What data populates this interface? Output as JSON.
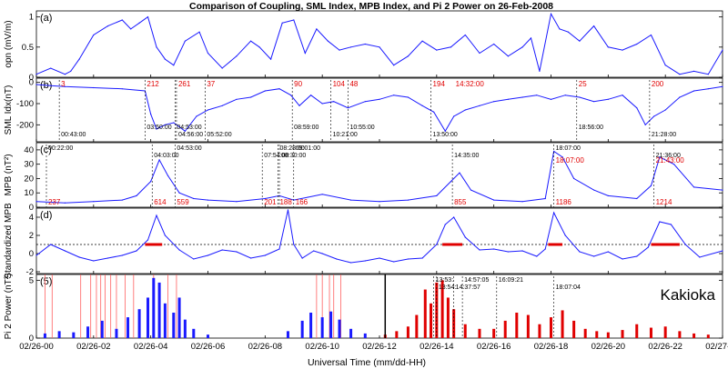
{
  "title": "Comparison of Coupling, SML Index, MPB Index, and Pi 2 Power on 26-Feb-2008",
  "xlabel": "Universal Time (mm/dd-HH)",
  "x_ticks": [
    "02/26-00",
    "02/26-02",
    "02/26-04",
    "02/26-06",
    "02/26-08",
    "02/26-10",
    "02/26-12",
    "02/26-14",
    "02/26-16",
    "02/26-18",
    "02/26-20",
    "02/26-22",
    "02/27-00"
  ],
  "colors": {
    "line": "#1a1aff",
    "red": "#e00000",
    "black": "#000000"
  },
  "chart_data": [
    {
      "type": "line",
      "panel": "(a)",
      "ylabel": "opn (mV/m)",
      "yticks": [
        "0",
        "0.5",
        "1"
      ],
      "ylim": [
        0,
        1.1
      ],
      "x": [
        0,
        0.5,
        1.0,
        1.2,
        1.5,
        2.0,
        2.5,
        3.0,
        3.3,
        3.6,
        3.9,
        4.2,
        4.5,
        4.8,
        5.2,
        5.7,
        6.0,
        6.5,
        7.0,
        7.5,
        7.8,
        8.2,
        8.6,
        9.0,
        9.4,
        9.8,
        10.2,
        10.6,
        11.0,
        11.5,
        12.0,
        12.5,
        13.0,
        13.5,
        14.0,
        14.5,
        15.0,
        15.5,
        16.0,
        16.5,
        17.0,
        17.3,
        17.6,
        18.0,
        18.3,
        18.6,
        19.0,
        19.5,
        20.0,
        20.5,
        21.0,
        21.5,
        22.0,
        22.5,
        23.0,
        23.5,
        24.0
      ],
      "y": [
        0.05,
        0.15,
        0.05,
        0.1,
        0.3,
        0.7,
        0.85,
        0.95,
        0.8,
        0.9,
        1.0,
        0.5,
        0.3,
        0.2,
        0.6,
        0.75,
        0.4,
        0.15,
        0.35,
        0.6,
        0.5,
        0.3,
        0.9,
        0.95,
        0.4,
        0.8,
        0.6,
        0.45,
        0.5,
        0.55,
        0.5,
        0.2,
        0.35,
        0.6,
        0.45,
        0.5,
        0.7,
        0.4,
        0.55,
        0.35,
        0.5,
        0.65,
        0.1,
        1.05,
        0.8,
        0.75,
        0.6,
        0.85,
        0.5,
        0.45,
        0.55,
        0.7,
        0.2,
        0.05,
        0.1,
        0.05,
        0.45
      ]
    },
    {
      "type": "line",
      "panel": "(b)",
      "ylabel": "SML Idx(nT)",
      "yticks": [
        "0",
        "-100",
        "-200"
      ],
      "ylim": [
        -280,
        20
      ],
      "x": [
        0,
        0.5,
        1.0,
        2.0,
        3.0,
        3.8,
        4.0,
        4.2,
        4.5,
        4.8,
        5.2,
        5.6,
        6.0,
        6.5,
        7.0,
        7.5,
        8.0,
        8.5,
        8.9,
        9.2,
        9.6,
        10.0,
        10.4,
        10.9,
        11.5,
        12.0,
        12.5,
        13.0,
        13.5,
        13.9,
        14.3,
        14.6,
        15.0,
        15.5,
        16.0,
        16.5,
        17.0,
        17.5,
        18.0,
        18.5,
        19.0,
        19.5,
        20.0,
        20.5,
        21.0,
        21.3,
        21.6,
        22.0,
        22.5,
        23.0,
        23.5,
        24.0
      ],
      "y": [
        -10,
        -15,
        -20,
        -25,
        -30,
        -40,
        -150,
        -220,
        -200,
        -190,
        -230,
        -160,
        -130,
        -110,
        -80,
        -70,
        -40,
        -30,
        -60,
        -110,
        -60,
        -100,
        -90,
        -120,
        -90,
        -80,
        -60,
        -70,
        -110,
        -140,
        -230,
        -160,
        -130,
        -110,
        -90,
        -80,
        -70,
        -60,
        -80,
        -60,
        -70,
        -90,
        -80,
        -60,
        -120,
        -200,
        -160,
        -130,
        -70,
        -40,
        -30,
        -20
      ],
      "red_labels": [
        "3",
        "212",
        "261",
        "37",
        "90",
        "104",
        "48",
        "194",
        "14:32:00",
        "25",
        "200"
      ],
      "top_labels": [
        "00:43:00",
        "03:50:00",
        "04:56:00",
        "04:53:00",
        "05:52:00",
        "08:59:00",
        "10:21:00",
        "10:55:00",
        "13:50:00",
        "18:56:00",
        "21:28:00"
      ]
    },
    {
      "type": "line",
      "panel": "(c)",
      "ylabel": "MPB (nT²)",
      "yticks": [
        "0",
        "10",
        "20",
        "30",
        "40"
      ],
      "ylim": [
        0,
        45
      ],
      "x": [
        0,
        1,
        2,
        3,
        3.5,
        4.0,
        4.3,
        4.6,
        5.0,
        5.5,
        6.0,
        7.0,
        8.0,
        8.5,
        9.0,
        9.5,
        10,
        11,
        12,
        13,
        14.0,
        14.5,
        14.8,
        15.2,
        16,
        17,
        17.8,
        18.1,
        18.4,
        18.8,
        19.5,
        20,
        21,
        21.5,
        21.8,
        22.3,
        23,
        24
      ],
      "y": [
        4,
        3,
        4,
        5,
        8,
        18,
        33,
        22,
        10,
        6,
        5,
        4,
        6,
        8,
        5,
        7,
        9,
        5,
        4,
        5,
        8,
        18,
        24,
        12,
        5,
        4,
        6,
        39,
        35,
        20,
        12,
        8,
        6,
        15,
        35,
        30,
        14,
        12
      ],
      "red_labels": [
        "237",
        "614",
        "559",
        "201",
        "188",
        "166",
        "855",
        "1186",
        "1214",
        "18:07:00",
        "21:43:00"
      ],
      "top_labels": [
        "00:22:00",
        "04:03:00",
        "04:53:00",
        "07:54:00",
        "08:28:00",
        "08:30:00",
        "09:01:00",
        "14:35:00",
        "18:07:00",
        "21:36:00"
      ]
    },
    {
      "type": "line",
      "panel": "(d)",
      "ylabel": "Standardized MPB",
      "yticks": [
        "-2",
        "0",
        "2",
        "4"
      ],
      "ylim": [
        -2.2,
        5
      ],
      "threshold": 1,
      "x": [
        0,
        0.5,
        1.0,
        1.5,
        2.0,
        2.5,
        3.0,
        3.5,
        3.9,
        4.2,
        4.5,
        5.0,
        5.5,
        6.0,
        6.5,
        7.0,
        7.5,
        8.0,
        8.5,
        8.8,
        9.0,
        9.3,
        9.7,
        10.0,
        10.5,
        11.0,
        11.5,
        12.0,
        12.5,
        13.0,
        13.5,
        14.0,
        14.3,
        14.6,
        15.0,
        15.5,
        16.0,
        16.5,
        17.0,
        17.5,
        17.8,
        18.1,
        18.5,
        19.0,
        19.5,
        20.0,
        20.5,
        21.0,
        21.4,
        21.8,
        22.2,
        22.7,
        23.2,
        24.0
      ],
      "y": [
        -0.2,
        1.0,
        0.3,
        -0.4,
        -0.8,
        -0.5,
        -0.2,
        0.3,
        1.5,
        4.2,
        2.0,
        0.4,
        -0.6,
        -0.2,
        0.4,
        0.2,
        -0.5,
        -0.2,
        0.5,
        4.8,
        1.0,
        -0.5,
        0.3,
        0.0,
        -0.6,
        -1.0,
        -0.8,
        -0.5,
        -0.9,
        -0.6,
        -0.5,
        1.0,
        3.2,
        4.0,
        1.8,
        0.4,
        0.5,
        0.2,
        0.3,
        -0.3,
        0.5,
        4.5,
        2.0,
        0.2,
        -0.3,
        0.2,
        -0.6,
        -0.3,
        0.7,
        3.5,
        3.2,
        1.0,
        -0.4,
        0.3
      ],
      "highlight_spans": [
        [
          3.8,
          4.4
        ],
        [
          14.2,
          14.9
        ],
        [
          17.9,
          18.4
        ],
        [
          21.5,
          22.5
        ]
      ]
    },
    {
      "type": "bar",
      "panel": "(5)",
      "ylabel": "Pi 2 Power (nT²)",
      "yticks": [
        "0",
        "5"
      ],
      "ylim": [
        0,
        5.5
      ],
      "station": "Kakioka",
      "series": [
        {
          "color": "blue",
          "x": [
            0.3,
            0.8,
            1.3,
            1.8,
            2.3,
            2.8,
            3.2,
            3.6,
            3.9,
            4.1,
            4.3,
            4.5,
            4.8,
            5.0,
            5.2,
            5.5,
            6.0,
            8.8,
            9.3,
            9.6,
            10.0,
            10.3,
            10.6,
            11.0,
            11.5
          ],
          "y": [
            0.4,
            0.6,
            0.5,
            1.0,
            1.5,
            0.8,
            1.8,
            2.5,
            3.5,
            5.2,
            4.8,
            3.0,
            2.2,
            3.5,
            1.6,
            0.8,
            0.3,
            0.6,
            1.5,
            2.2,
            1.8,
            2.3,
            1.6,
            0.8,
            0.4
          ]
        },
        {
          "color": "red",
          "x": [
            12.2,
            12.6,
            13.0,
            13.3,
            13.6,
            13.8,
            14.0,
            14.2,
            14.4,
            14.6,
            15.0,
            15.5,
            16.0,
            16.4,
            16.8,
            17.2,
            17.6,
            18.0,
            18.4,
            18.8,
            19.2,
            19.6,
            20.0,
            20.5,
            21.0,
            21.5,
            22.0,
            22.5,
            23.0,
            23.5
          ],
          "y": [
            0.3,
            0.6,
            1.0,
            2.0,
            4.2,
            3.0,
            4.8,
            5.0,
            3.5,
            2.5,
            1.2,
            0.8,
            0.8,
            1.5,
            2.2,
            2.0,
            1.2,
            1.8,
            2.4,
            1.5,
            0.8,
            0.6,
            0.5,
            0.7,
            1.2,
            0.9,
            1.0,
            0.6,
            0.4,
            0.3
          ]
        }
      ],
      "red_event_times": [
        0.3,
        0.55,
        1.55,
        1.9,
        2.1,
        2.25,
        2.4,
        2.6,
        2.8,
        3.1,
        3.4,
        4.1,
        4.6,
        4.9,
        9.8,
        10.0,
        10.25,
        10.4,
        10.65
      ],
      "vertical_line_time": 12.2,
      "top_labels": [
        "13:53:",
        "13:54:",
        "14:57:05",
        "14:37:57",
        "16:09:21",
        "18:07:04"
      ]
    }
  ]
}
